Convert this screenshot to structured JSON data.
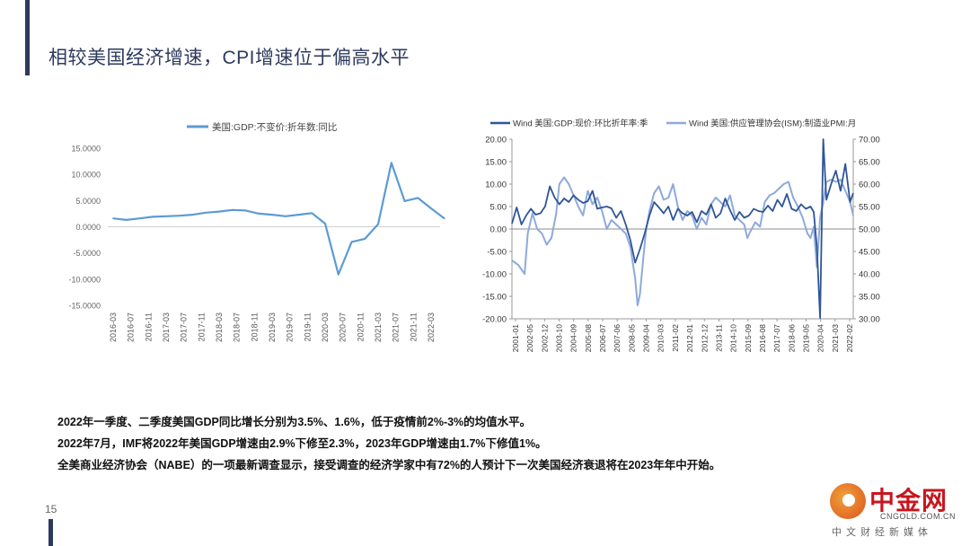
{
  "slide": {
    "title": "相较美国经济增速，CPI增速位于偏高水平",
    "page_number": "15",
    "notes": [
      "2022年一季度、二季度美国GDP同比增长分别为3.5%、1.6%，低于疫情前2%-3%的均值水平。",
      "2022年7月，IMF将2022年美国GDP增速由2.9%下修至2.3%，2023年GDP增速由1.7%下修值1%。",
      "全美商业经济协会（NABE）的一项最新调查显示，接受调查的经济学家中有72%的人预计下一次美国经济衰退将在2023年年中开始。"
    ]
  },
  "logo": {
    "main": "中金网",
    "domain": "CNGOLD.COM.CN",
    "sub": "中文财经新媒体"
  },
  "colors": {
    "title": "#2d3a5c",
    "gdp_line": "#5b9bd5",
    "wind_gdp": "#2e5597",
    "wind_pmi": "#8eaadb"
  },
  "chart_data": [
    {
      "type": "line",
      "legend": [
        "美国:GDP:不变价:折年数:同比"
      ],
      "legend_position": "top",
      "x_ticks": [
        "2016-03",
        "2016-07",
        "2016-11",
        "2017-03",
        "2017-07",
        "2017-11",
        "2018-03",
        "2018-07",
        "2018-11",
        "2019-03",
        "2019-07",
        "2019-11",
        "2020-03",
        "2020-07",
        "2020-11",
        "2021-03",
        "2021-07",
        "2021-11",
        "2022-03"
      ],
      "y_ticks": [
        "15.0000",
        "10.0000",
        "5.0000",
        "0.0000",
        "-5.0000",
        "-10.0000",
        "-15.0000"
      ],
      "ylim": [
        -15,
        15
      ],
      "grid": false,
      "x": [
        "2016-03",
        "2016-06",
        "2016-09",
        "2016-12",
        "2017-03",
        "2017-06",
        "2017-09",
        "2017-12",
        "2018-03",
        "2018-06",
        "2018-09",
        "2018-12",
        "2019-03",
        "2019-06",
        "2019-09",
        "2019-12",
        "2020-03",
        "2020-06",
        "2020-09",
        "2020-12",
        "2021-03",
        "2021-06",
        "2021-09",
        "2021-12",
        "2022-03",
        "2022-06"
      ],
      "series": [
        {
          "name": "美国:GDP:不变价:折年数:同比",
          "values": [
            1.6,
            1.3,
            1.6,
            1.9,
            2.0,
            2.1,
            2.3,
            2.7,
            2.9,
            3.2,
            3.1,
            2.5,
            2.3,
            2.0,
            2.3,
            2.6,
            0.6,
            -9.1,
            -2.9,
            -2.3,
            0.5,
            12.2,
            4.9,
            5.5,
            3.5,
            1.6
          ]
        }
      ]
    },
    {
      "type": "line",
      "legend": [
        "Wind 美国:GDP:现价:环比折年率:季",
        "Wind 美国:供应管理协会(ISM):制造业PMI:月"
      ],
      "legend_position": "top",
      "x_ticks": [
        "2001-01",
        "2002-05",
        "2002-12",
        "2003-10",
        "2004-09",
        "2005-08",
        "2006-07",
        "2007-06",
        "2008-05",
        "2009-04",
        "2010-03",
        "2011-02",
        "2012-01",
        "2012-12",
        "2013-11",
        "2014-10",
        "2015-09",
        "2016-08",
        "2017-07",
        "2018-06",
        "2019-05",
        "2020-04",
        "2021-03",
        "2022-02"
      ],
      "y_left_ticks": [
        "20.00",
        "15.00",
        "10.00",
        "5.00",
        "0.00",
        "-5.00",
        "-10.00",
        "-15.00",
        "-20.00"
      ],
      "y_right_ticks": [
        "70.00",
        "65.00",
        "60.00",
        "55.00",
        "50.00",
        "45.00",
        "40.00",
        "35.00",
        "30.00"
      ],
      "ylim_left": [
        -20,
        20
      ],
      "ylim_right": [
        30,
        70
      ],
      "grid": false,
      "x_range": [
        2001.0,
        2022.6
      ],
      "series": [
        {
          "name": "Wind 美国:GDP:现价:环比折年率:季",
          "axis": "left",
          "x": [
            2001.0,
            2001.3,
            2001.6,
            2001.9,
            2002.2,
            2002.5,
            2002.8,
            2003.1,
            2003.4,
            2003.7,
            2004.0,
            2004.3,
            2004.6,
            2004.9,
            2005.2,
            2005.5,
            2005.8,
            2006.1,
            2006.4,
            2006.7,
            2007.0,
            2007.3,
            2007.6,
            2007.9,
            2008.2,
            2008.5,
            2008.8,
            2009.1,
            2009.4,
            2009.7,
            2010.0,
            2010.3,
            2010.6,
            2010.9,
            2011.2,
            2011.5,
            2011.8,
            2012.1,
            2012.4,
            2012.7,
            2013.0,
            2013.3,
            2013.6,
            2013.9,
            2014.2,
            2014.5,
            2014.8,
            2015.1,
            2015.4,
            2015.7,
            2016.0,
            2016.3,
            2016.6,
            2016.9,
            2017.2,
            2017.5,
            2017.8,
            2018.1,
            2018.4,
            2018.7,
            2019.0,
            2019.3,
            2019.6,
            2019.9,
            2020.1,
            2020.3,
            2020.5,
            2020.7,
            2020.9,
            2021.2,
            2021.5,
            2021.8,
            2022.1,
            2022.4,
            2022.6
          ],
          "values": [
            1.2,
            4.8,
            1.0,
            3.0,
            4.5,
            3.2,
            3.5,
            5.0,
            9.5,
            7.0,
            5.5,
            6.8,
            6.0,
            7.5,
            6.5,
            5.8,
            6.2,
            8.5,
            4.5,
            4.8,
            5.0,
            4.6,
            2.5,
            4.0,
            1.0,
            -2.5,
            -7.5,
            -4.5,
            -1.0,
            3.0,
            6.0,
            4.8,
            3.5,
            5.0,
            2.0,
            4.5,
            3.5,
            3.0,
            3.8,
            1.5,
            4.0,
            3.2,
            5.5,
            2.5,
            3.5,
            6.8,
            4.2,
            2.0,
            3.8,
            2.5,
            3.0,
            4.5,
            4.0,
            3.8,
            5.2,
            4.0,
            6.5,
            5.0,
            7.8,
            4.5,
            4.0,
            5.5,
            4.5,
            5.0,
            3.8,
            -4.0,
            -19.8,
            20.0,
            6.5,
            10.0,
            13.0,
            8.5,
            14.5,
            6.0,
            8.0
          ]
        },
        {
          "name": "Wind 美国:供应管理协会(ISM):制造业PMI:月",
          "axis": "right",
          "x": [
            2001.0,
            2001.4,
            2001.8,
            2002.0,
            2002.3,
            2002.6,
            2002.9,
            2003.2,
            2003.5,
            2003.8,
            2004.0,
            2004.3,
            2004.6,
            2004.9,
            2005.2,
            2005.5,
            2005.8,
            2006.1,
            2006.4,
            2006.7,
            2007.0,
            2007.3,
            2007.6,
            2007.9,
            2008.2,
            2008.5,
            2008.8,
            2008.95,
            2009.1,
            2009.3,
            2009.5,
            2009.7,
            2010.0,
            2010.3,
            2010.6,
            2010.9,
            2011.2,
            2011.5,
            2011.8,
            2012.1,
            2012.4,
            2012.7,
            2013.0,
            2013.3,
            2013.6,
            2013.9,
            2014.2,
            2014.5,
            2014.8,
            2015.1,
            2015.4,
            2015.7,
            2015.9,
            2016.1,
            2016.4,
            2016.7,
            2017.0,
            2017.3,
            2017.6,
            2017.9,
            2018.2,
            2018.5,
            2018.8,
            2019.1,
            2019.4,
            2019.7,
            2019.9,
            2020.1,
            2020.3,
            2020.5,
            2020.7,
            2020.9,
            2021.2,
            2021.5,
            2021.8,
            2022.1,
            2022.4,
            2022.6
          ],
          "values": [
            43.0,
            42.0,
            40.0,
            49.0,
            53.5,
            50.0,
            49.0,
            46.5,
            48.0,
            53.5,
            60.0,
            61.5,
            60.0,
            57.5,
            55.0,
            53.0,
            58.5,
            55.5,
            57.0,
            54.0,
            50.0,
            52.0,
            51.0,
            50.0,
            49.0,
            46.0,
            39.0,
            33.0,
            35.5,
            43.0,
            50.0,
            54.0,
            58.0,
            59.5,
            56.5,
            57.0,
            60.0,
            55.0,
            52.0,
            54.0,
            53.0,
            50.0,
            52.5,
            51.0,
            55.5,
            57.0,
            56.0,
            55.0,
            57.5,
            53.0,
            52.0,
            51.0,
            48.0,
            49.5,
            51.5,
            50.5,
            56.0,
            57.5,
            58.0,
            59.0,
            60.0,
            60.5,
            57.0,
            55.0,
            52.5,
            49.0,
            48.0,
            50.5,
            41.5,
            52.5,
            56.0,
            60.5,
            61.0,
            60.5,
            61.0,
            58.5,
            56.0,
            53.0
          ]
        }
      ]
    }
  ]
}
